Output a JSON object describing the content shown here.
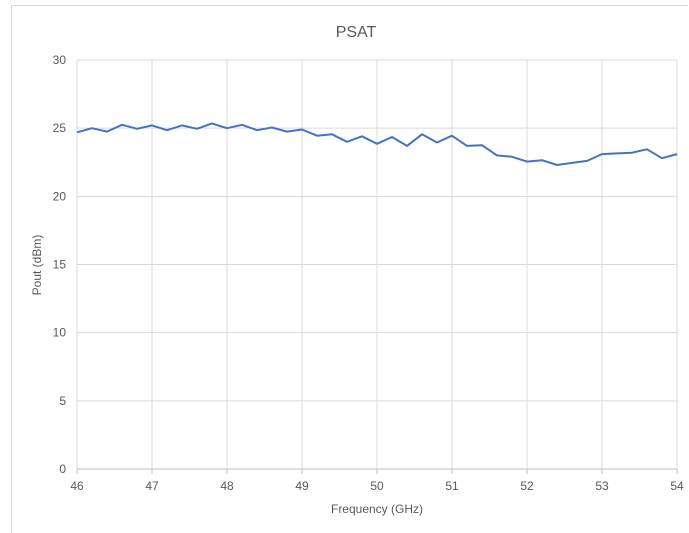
{
  "chart_data": {
    "type": "line",
    "title": "PSAT",
    "xlabel": "Frequency (GHz)",
    "ylabel": "Pout (dBm)",
    "xlim": [
      46,
      54
    ],
    "ylim": [
      0,
      30
    ],
    "x_ticks": [
      46,
      47,
      48,
      49,
      50,
      51,
      52,
      53,
      54
    ],
    "y_ticks": [
      0,
      5,
      10,
      15,
      20,
      25,
      30
    ],
    "grid": true,
    "legend": "none",
    "series": [
      {
        "color": "#4472c4",
        "x": [
          46.0,
          46.2,
          46.4,
          46.6,
          46.8,
          47.0,
          47.2,
          47.4,
          47.6,
          47.8,
          48.0,
          48.2,
          48.4,
          48.6,
          48.8,
          49.0,
          49.2,
          49.4,
          49.6,
          49.8,
          50.0,
          50.2,
          50.4,
          50.6,
          50.8,
          51.0,
          51.2,
          51.4,
          51.6,
          51.8,
          52.0,
          52.2,
          52.4,
          52.6,
          52.8,
          53.0,
          53.2,
          53.4,
          53.6,
          53.8,
          54.0
        ],
        "y": [
          24.7,
          25.0,
          24.75,
          25.25,
          24.95,
          25.2,
          24.85,
          25.2,
          24.95,
          25.35,
          25.0,
          25.25,
          24.85,
          25.05,
          24.75,
          24.9,
          24.45,
          24.55,
          24.0,
          24.4,
          23.85,
          24.35,
          23.7,
          24.55,
          23.95,
          24.45,
          23.7,
          23.75,
          23.0,
          22.9,
          22.55,
          22.65,
          22.3,
          22.45,
          22.6,
          23.1,
          23.15,
          23.2,
          23.45,
          22.8,
          23.1
        ]
      }
    ]
  }
}
